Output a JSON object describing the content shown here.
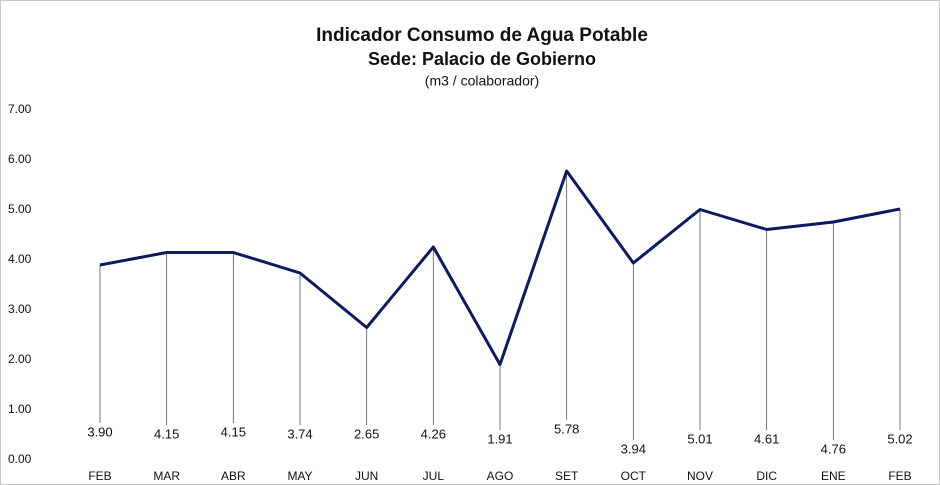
{
  "chart_data": {
    "type": "line",
    "title": "Indicador Consumo de Agua Potable",
    "subtitle": "Sede: Palacio de Gobierno",
    "unit_label": "(m3 / colaborador)",
    "categories": [
      "FEB",
      "MAR",
      "ABR",
      "MAY",
      "JUN",
      "JUL",
      "AGO",
      "SET",
      "OCT",
      "NOV",
      "DIC",
      "ENE",
      "FEB"
    ],
    "series": [
      {
        "name": "Consumo",
        "color": "#0d1b5e",
        "values": [
          3.9,
          4.15,
          4.15,
          3.74,
          2.65,
          4.26,
          1.91,
          5.78,
          3.94,
          5.01,
          4.61,
          4.76,
          5.02
        ],
        "value_labels": [
          "3.90",
          "4.15",
          "4.15",
          "3.74",
          "2.65",
          "4.26",
          "1.91",
          "5.78",
          "3.94",
          "5.01",
          "4.61",
          "4.76",
          "5.02"
        ]
      }
    ],
    "ylim": [
      0,
      7
    ],
    "yticks": [
      {
        "value": 0,
        "label": "0.00"
      },
      {
        "value": 1,
        "label": "1.00"
      },
      {
        "value": 2,
        "label": "2.00"
      },
      {
        "value": 3,
        "label": "3.00"
      },
      {
        "value": 4,
        "label": "4.00"
      },
      {
        "value": 5,
        "label": "5.00"
      },
      {
        "value": 6,
        "label": "6.00"
      },
      {
        "value": 7,
        "label": "7.00"
      }
    ],
    "grid": false
  }
}
